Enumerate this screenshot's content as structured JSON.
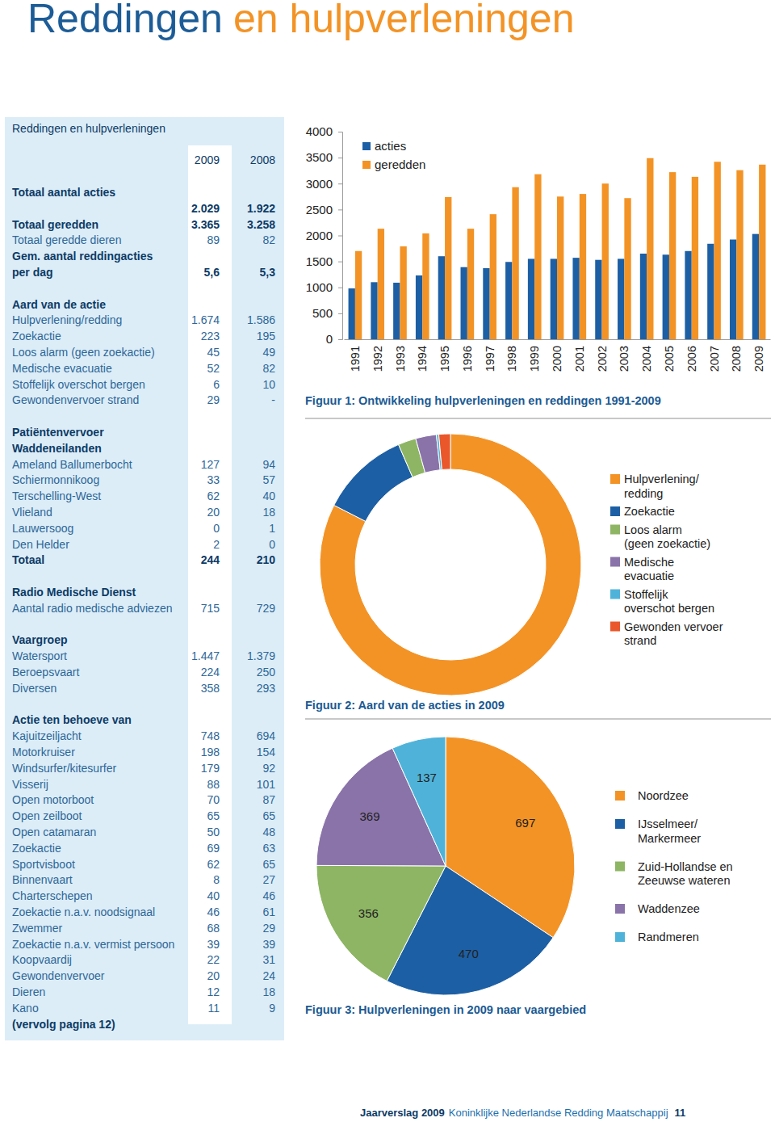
{
  "header": {
    "title": [
      "Reddingen",
      "en hulpverleningen"
    ]
  },
  "table": {
    "title": "Reddingen en hulpverleningen",
    "columns": [
      "2009",
      "2008"
    ],
    "sections": [
      {
        "rows": [
          {
            "label": "Totaal aantal acties",
            "values": [
              "2.029",
              "1.922"
            ]
          },
          {
            "label": "Totaal geredden",
            "values": [
              "3.365",
              "3.258"
            ]
          },
          {
            "label": "Totaal geredde dieren",
            "values": [
              "89",
              "82"
            ]
          },
          {
            "label": [
              "Gem. aantal reddingacties",
              "per dag"
            ],
            "values": [
              "5,6",
              "5,3"
            ]
          }
        ]
      },
      {
        "heading": [
          "Aard van de actie"
        ],
        "rows": [
          {
            "label": "Hulpverlening/redding",
            "values": [
              "1.674",
              "1.586"
            ]
          },
          {
            "label": "Zoekactie",
            "values": [
              "223",
              "195"
            ]
          },
          {
            "label": "Loos alarm (geen zoekactie)",
            "values": [
              "45",
              "49"
            ]
          },
          {
            "label": "Medische evacuatie",
            "values": [
              "52",
              "82"
            ]
          },
          {
            "label": "Stoffelijk overschot bergen",
            "values": [
              "6",
              "10"
            ]
          },
          {
            "label": "Gewondenvervoer strand",
            "values": [
              "29",
              "-"
            ]
          }
        ]
      },
      {
        "heading": [
          "Patiëntenvervoer",
          "Waddeneilanden"
        ],
        "rows": [
          {
            "label": "Ameland Ballumerbocht",
            "values": [
              "127",
              "94"
            ]
          },
          {
            "label": "Schiermonnikoog",
            "values": [
              "33",
              "57"
            ]
          },
          {
            "label": "Terschelling-West",
            "values": [
              "62",
              "40"
            ]
          },
          {
            "label": "Vlieland",
            "values": [
              "20",
              "18"
            ]
          },
          {
            "label": "Lauwersoog",
            "values": [
              "0",
              "1"
            ]
          },
          {
            "label": "Den Helder",
            "values": [
              "2",
              "0"
            ]
          },
          {
            "label": "Totaal",
            "values": [
              "244",
              "210"
            ]
          }
        ]
      },
      {
        "heading": [
          "Radio Medische Dienst"
        ],
        "rows": [
          {
            "label": "Aantal radio medische adviezen",
            "values": [
              "715",
              "729"
            ]
          }
        ]
      },
      {
        "heading": [
          "Vaargroep"
        ],
        "rows": [
          {
            "label": "Watersport",
            "values": [
              "1.447",
              "1.379"
            ]
          },
          {
            "label": "Beroepsvaart",
            "values": [
              "224",
              "250"
            ]
          },
          {
            "label": "Diversen",
            "values": [
              "358",
              "293"
            ]
          }
        ]
      },
      {
        "heading": [
          "Actie ten behoeve van"
        ],
        "rows": [
          {
            "label": "Kajuitzeiljacht",
            "values": [
              "748",
              "694"
            ]
          },
          {
            "label": "Motorkruiser",
            "values": [
              "198",
              "154"
            ]
          },
          {
            "label": "Windsurfer/kitesurfer",
            "values": [
              "179",
              "92"
            ]
          },
          {
            "label": "Visserij",
            "values": [
              "88",
              "101"
            ]
          },
          {
            "label": "Open motorboot",
            "values": [
              "70",
              "87"
            ]
          },
          {
            "label": "Open zeilboot",
            "values": [
              "65",
              "65"
            ]
          },
          {
            "label": "Open catamaran",
            "values": [
              "50",
              "48"
            ]
          },
          {
            "label": "Zoekactie",
            "values": [
              "69",
              "63"
            ]
          },
          {
            "label": "Sportvisboot",
            "values": [
              "62",
              "65"
            ]
          },
          {
            "label": "Binnenvaart",
            "values": [
              "8",
              "27"
            ]
          },
          {
            "label": "Charterschepen",
            "values": [
              "40",
              "46"
            ]
          },
          {
            "label": "Zoekactie n.a.v. noodsignaal",
            "values": [
              "46",
              "61"
            ]
          },
          {
            "label": "Zwemmer",
            "values": [
              "68",
              "29"
            ]
          },
          {
            "label": "Zoekactie n.a.v. vermist persoon",
            "values": [
              "39",
              "39"
            ]
          },
          {
            "label": "Koopvaardij",
            "values": [
              "22",
              "31"
            ]
          },
          {
            "label": "Gewondenvervoer",
            "values": [
              "20",
              "24"
            ]
          },
          {
            "label": "Dieren",
            "values": [
              "12",
              "18"
            ]
          },
          {
            "label": "Kano",
            "values": [
              "11",
              "9"
            ]
          }
        ]
      }
    ],
    "note": "(vervolg pagina 12)"
  },
  "chart_data": [
    {
      "type": "bar",
      "title": "Figuur 1: Ontwikkeling hulpverleningen en reddingen 1991-2009",
      "categories": [
        "1991",
        "1992",
        "1993",
        "1994",
        "1995",
        "1996",
        "1997",
        "1998",
        "1999",
        "2000",
        "2001",
        "2002",
        "2003",
        "2004",
        "2005",
        "2006",
        "2007",
        "2008",
        "2009"
      ],
      "series": [
        {
          "name": "acties",
          "color": "#1d5fa4",
          "values": [
            980,
            1100,
            1090,
            1230,
            1600,
            1390,
            1370,
            1490,
            1550,
            1550,
            1570,
            1530,
            1550,
            1650,
            1630,
            1700,
            1840,
            1922,
            2029
          ]
        },
        {
          "name": "geredden",
          "color": "#f39325",
          "values": [
            1700,
            2130,
            1790,
            2040,
            2740,
            2130,
            2410,
            2930,
            3180,
            2750,
            2800,
            3000,
            2720,
            3490,
            3220,
            3130,
            3420,
            3258,
            3365
          ]
        }
      ],
      "ylim": [
        0,
        4000
      ],
      "yticks": [
        0,
        500,
        1000,
        1500,
        2000,
        2500,
        3000,
        3500,
        4000
      ],
      "grid": false,
      "legend": "top-left"
    },
    {
      "type": "donut",
      "title": "Figuur 2: Aard van de acties in 2009",
      "categories": [
        "Hulpverlening/\nredding",
        "Zoekactie",
        "Loos alarm\n(geen zoekactie)",
        "Medische\nevacuatie",
        "Stoffelijk\noverschot bergen",
        "Gewonden vervoer\nstrand"
      ],
      "values": [
        1674,
        223,
        45,
        52,
        6,
        29
      ],
      "colors": [
        "#f39325",
        "#1d5fa4",
        "#8db563",
        "#8a73a9",
        "#4fb3d9",
        "#e9572a"
      ],
      "legend": "right"
    },
    {
      "type": "pie",
      "title": "Figuur 3: Hulpverleningen in 2009 naar vaargebied",
      "categories": [
        "Noordzee",
        "IJsselmeer/\nMarkermeer",
        "Zuid-Hollandse en\nZeeuwse wateren",
        "Waddenzee",
        "Randmeren"
      ],
      "values": [
        697,
        470,
        356,
        369,
        137
      ],
      "colors": [
        "#f39325",
        "#1d5fa4",
        "#8db563",
        "#8a73a9",
        "#4fb3d9"
      ],
      "data_labels": true,
      "legend": "right"
    }
  ],
  "footer": {
    "report": "Jaarverslag 2009",
    "organisation": "Koninklijke Nederlandse Redding Maatschappij",
    "page": "11"
  }
}
